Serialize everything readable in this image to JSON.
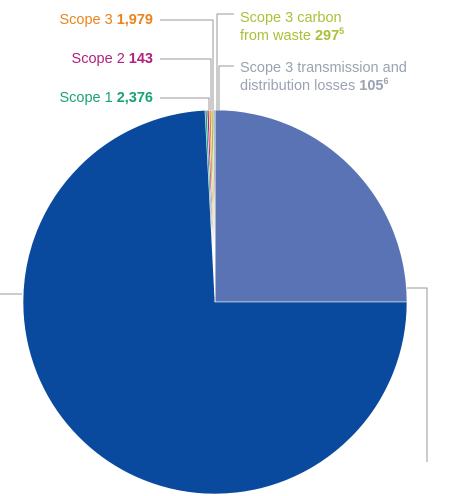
{
  "chart_data": {
    "type": "pie",
    "title": "",
    "slices": [
      {
        "name": "Scope 3 transmission and distribution losses",
        "value": 105,
        "note": "6",
        "color": "#9aa3b0"
      },
      {
        "name": "Scope 3 carbon from waste",
        "value": 297,
        "note": "5",
        "color": "#a8c23a"
      },
      {
        "name": "Scope 3",
        "value": 1979,
        "color": "#e8851e"
      },
      {
        "name": "Scope 2",
        "value": 143,
        "color": "#b0227f"
      },
      {
        "name": "Scope 1",
        "value": 2376,
        "color": "#1aa27a"
      }
    ],
    "large_slices": [
      {
        "value": 25,
        "unit": "%",
        "color": "#5a73b4"
      },
      {
        "value": 75,
        "unit": "%",
        "color": "#0a4a9e"
      }
    ]
  },
  "labels": {
    "scope3_name": "Scope 3",
    "scope3_value": "1,979",
    "scope2_name": "Scope 2",
    "scope2_value": "143",
    "scope1_name": "Scope 1",
    "scope1_value": "2,376",
    "waste_line1": "Scope 3 carbon",
    "waste_line2": "from waste",
    "waste_value": "297",
    "waste_note": "5",
    "td_line1": "Scope 3 transmission and",
    "td_line2": "distribution losses",
    "td_value": "105",
    "td_note": "6"
  },
  "colors": {
    "scope3": "#e8851e",
    "scope2": "#b0227f",
    "scope1": "#1aa27a",
    "waste": "#a8c23a",
    "td": "#9aa3b0",
    "leader": "#9a9a9a"
  }
}
